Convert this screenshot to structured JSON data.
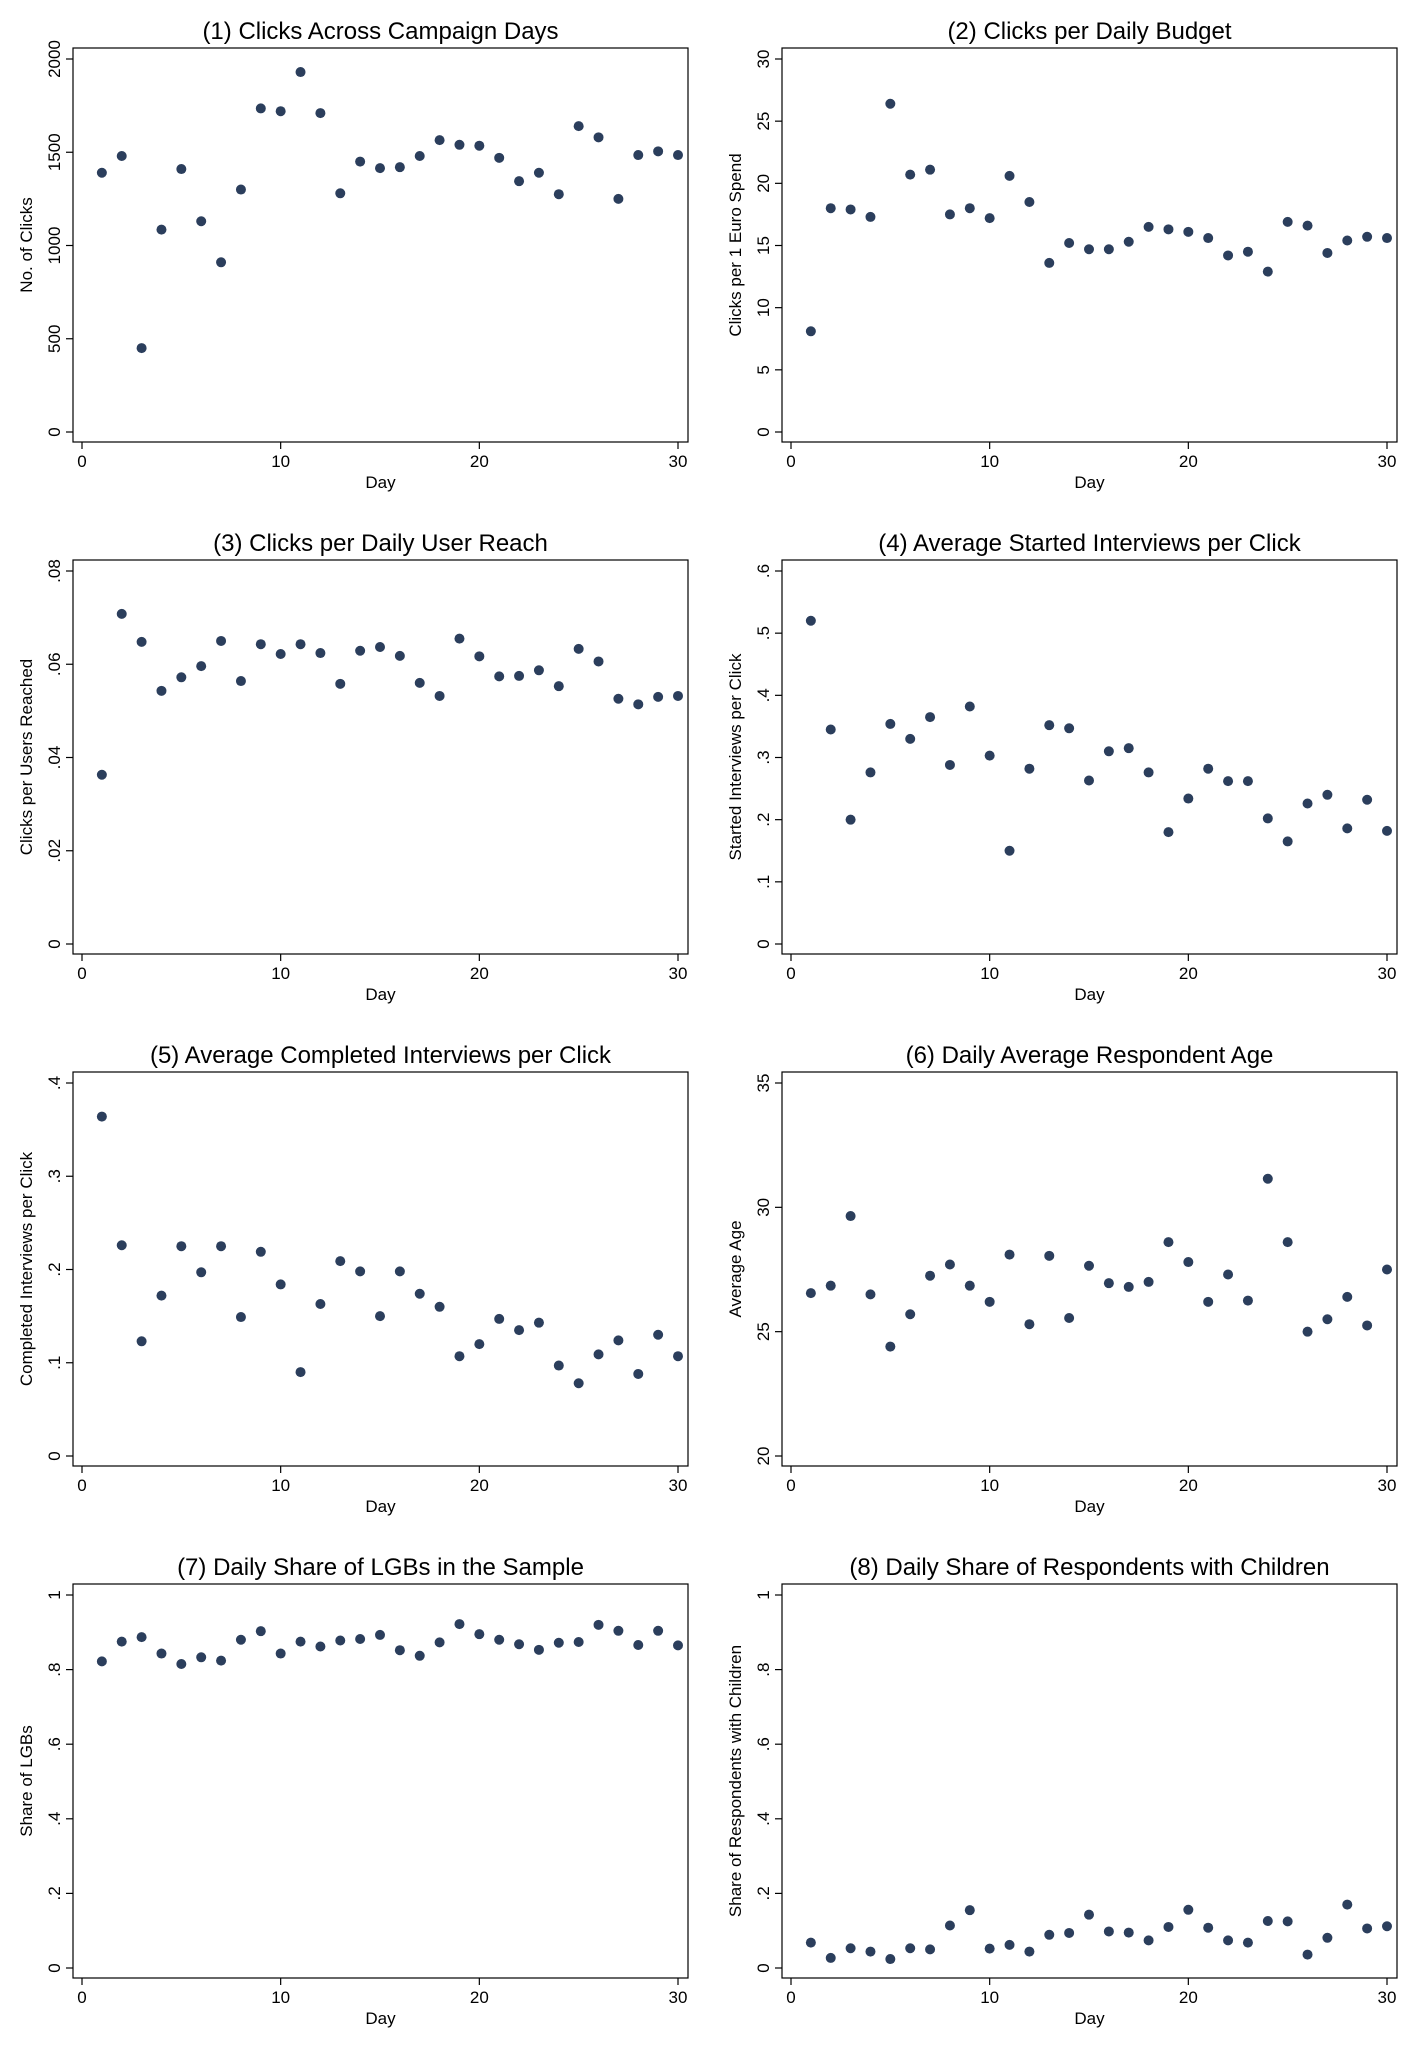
{
  "chart_data": [
    {
      "type": "scatter",
      "title": "(1) Clicks Across Campaign Days",
      "xlabel": "Day",
      "ylabel": "No. of Clicks",
      "xlim": [
        0,
        30
      ],
      "ylim": [
        0,
        2000
      ],
      "xticks": [
        0,
        10,
        20,
        30
      ],
      "xtick_labels": [
        "0",
        "10",
        "20",
        "30"
      ],
      "yticks": [
        0,
        500,
        1000,
        1500,
        2000
      ],
      "ytick_labels": [
        "0",
        "500",
        "1000",
        "1500",
        "2000"
      ],
      "grid": false,
      "x": [
        1,
        2,
        3,
        4,
        5,
        6,
        7,
        8,
        9,
        10,
        11,
        12,
        13,
        14,
        15,
        16,
        17,
        18,
        19,
        20,
        21,
        22,
        23,
        24,
        25,
        26,
        27,
        28,
        29,
        30
      ],
      "y": [
        1390,
        1480,
        450,
        1085,
        1410,
        1130,
        910,
        1300,
        1735,
        1720,
        1930,
        1710,
        1280,
        1450,
        1415,
        1420,
        1480,
        1565,
        1540,
        1535,
        1470,
        1345,
        1390,
        1275,
        1640,
        1580,
        1250,
        1485,
        1505,
        1485
      ]
    },
    {
      "type": "scatter",
      "title": "(2) Clicks per Daily Budget",
      "xlabel": "Day",
      "ylabel": "Clicks per 1 Euro Spend",
      "xlim": [
        0,
        30
      ],
      "ylim": [
        0,
        30
      ],
      "xticks": [
        0,
        10,
        20,
        30
      ],
      "xtick_labels": [
        "0",
        "10",
        "20",
        "30"
      ],
      "yticks": [
        0,
        5,
        10,
        15,
        20,
        25,
        30
      ],
      "ytick_labels": [
        "0",
        "5",
        "10",
        "15",
        "20",
        "25",
        "30"
      ],
      "grid": false,
      "x": [
        1,
        2,
        3,
        4,
        5,
        6,
        7,
        8,
        9,
        10,
        11,
        12,
        13,
        14,
        15,
        16,
        17,
        18,
        19,
        20,
        21,
        22,
        23,
        24,
        25,
        26,
        27,
        28,
        29,
        30
      ],
      "y": [
        8.1,
        18.0,
        17.9,
        17.3,
        26.4,
        20.7,
        21.1,
        17.5,
        18.0,
        17.2,
        20.6,
        18.5,
        13.6,
        15.2,
        14.7,
        14.7,
        15.3,
        16.5,
        16.3,
        16.1,
        15.6,
        14.2,
        14.5,
        12.9,
        16.9,
        16.6,
        14.4,
        15.4,
        15.7,
        15.6
      ]
    },
    {
      "type": "scatter",
      "title": "(3) Clicks per Daily User Reach",
      "xlabel": "Day",
      "ylabel": "Clicks per Users Reached",
      "xlim": [
        0,
        30
      ],
      "ylim": [
        0,
        0.08
      ],
      "xticks": [
        0,
        10,
        20,
        30
      ],
      "xtick_labels": [
        "0",
        "10",
        "20",
        "30"
      ],
      "yticks": [
        0,
        0.02,
        0.04,
        0.06,
        0.08
      ],
      "ytick_labels": [
        "0",
        ".02",
        ".04",
        ".06",
        ".08"
      ],
      "grid": false,
      "x": [
        1,
        2,
        3,
        4,
        5,
        6,
        7,
        8,
        9,
        10,
        11,
        12,
        13,
        14,
        15,
        16,
        17,
        18,
        19,
        20,
        21,
        22,
        23,
        24,
        25,
        26,
        27,
        28,
        29,
        30
      ],
      "y": [
        0.0363,
        0.0708,
        0.0648,
        0.0543,
        0.0572,
        0.0596,
        0.065,
        0.0564,
        0.0643,
        0.0622,
        0.0643,
        0.0624,
        0.0558,
        0.0629,
        0.0637,
        0.0618,
        0.056,
        0.0532,
        0.0655,
        0.0617,
        0.0574,
        0.0575,
        0.0587,
        0.0553,
        0.0633,
        0.0606,
        0.0526,
        0.0514,
        0.053,
        0.0532
      ]
    },
    {
      "type": "scatter",
      "title": "(4) Average Started Interviews per Click",
      "xlabel": "Day",
      "ylabel": "Started Interviews per Click",
      "xlim": [
        0,
        30
      ],
      "ylim": [
        0,
        0.6
      ],
      "xticks": [
        0,
        10,
        20,
        30
      ],
      "xtick_labels": [
        "0",
        "10",
        "20",
        "30"
      ],
      "yticks": [
        0,
        0.1,
        0.2,
        0.3,
        0.4,
        0.5,
        0.6
      ],
      "ytick_labels": [
        "0",
        ".1",
        ".2",
        ".3",
        ".4",
        ".5",
        ".6"
      ],
      "grid": false,
      "x": [
        1,
        2,
        3,
        4,
        5,
        6,
        7,
        8,
        9,
        10,
        11,
        12,
        13,
        14,
        15,
        16,
        17,
        18,
        19,
        20,
        21,
        22,
        23,
        24,
        25,
        26,
        27,
        28,
        29,
        30
      ],
      "y": [
        0.52,
        0.345,
        0.2,
        0.276,
        0.354,
        0.33,
        0.365,
        0.288,
        0.382,
        0.303,
        0.15,
        0.282,
        0.352,
        0.347,
        0.263,
        0.31,
        0.315,
        0.276,
        0.18,
        0.234,
        0.282,
        0.262,
        0.262,
        0.202,
        0.165,
        0.226,
        0.24,
        0.186,
        0.232,
        0.182
      ]
    },
    {
      "type": "scatter",
      "title": "(5) Average Completed Interviews per Click",
      "xlabel": "Day",
      "ylabel": "Completed Interviews per Click",
      "xlim": [
        0,
        30
      ],
      "ylim": [
        0,
        0.4
      ],
      "xticks": [
        0,
        10,
        20,
        30
      ],
      "xtick_labels": [
        "0",
        "10",
        "20",
        "30"
      ],
      "yticks": [
        0,
        0.1,
        0.2,
        0.3,
        0.4
      ],
      "ytick_labels": [
        "0",
        ".1",
        ".2",
        ".3",
        ".4"
      ],
      "grid": false,
      "x": [
        1,
        2,
        3,
        4,
        5,
        6,
        7,
        8,
        9,
        10,
        11,
        12,
        13,
        14,
        15,
        16,
        17,
        18,
        19,
        20,
        21,
        22,
        23,
        24,
        25,
        26,
        27,
        28,
        29,
        30
      ],
      "y": [
        0.364,
        0.226,
        0.123,
        0.172,
        0.225,
        0.197,
        0.225,
        0.149,
        0.219,
        0.184,
        0.09,
        0.163,
        0.209,
        0.198,
        0.15,
        0.198,
        0.174,
        0.16,
        0.107,
        0.12,
        0.147,
        0.135,
        0.143,
        0.097,
        0.078,
        0.109,
        0.124,
        0.088,
        0.13,
        0.107
      ]
    },
    {
      "type": "scatter",
      "title": "(6) Daily Average Respondent Age",
      "xlabel": "Day",
      "ylabel": "Average Age",
      "xlim": [
        0,
        30
      ],
      "ylim": [
        20,
        35
      ],
      "xticks": [
        0,
        10,
        20,
        30
      ],
      "xtick_labels": [
        "0",
        "10",
        "20",
        "30"
      ],
      "yticks": [
        20,
        25,
        30,
        35
      ],
      "ytick_labels": [
        "20",
        "25",
        "30",
        "35"
      ],
      "grid": false,
      "x": [
        1,
        2,
        3,
        4,
        5,
        6,
        7,
        8,
        9,
        10,
        11,
        12,
        13,
        14,
        15,
        16,
        17,
        18,
        19,
        20,
        21,
        22,
        23,
        24,
        25,
        26,
        27,
        28,
        29,
        30
      ],
      "y": [
        26.55,
        26.85,
        29.65,
        26.5,
        24.4,
        25.7,
        27.25,
        27.7,
        26.85,
        26.2,
        28.1,
        25.3,
        28.05,
        25.55,
        27.65,
        26.95,
        26.8,
        27.0,
        28.6,
        27.8,
        26.2,
        27.3,
        26.25,
        31.15,
        28.6,
        25.0,
        25.5,
        26.4,
        25.25,
        27.5
      ]
    },
    {
      "type": "scatter",
      "title": "(7) Daily Share of LGBs in the Sample",
      "xlabel": "Day",
      "ylabel": "Share of LGBs",
      "xlim": [
        0,
        30
      ],
      "ylim": [
        0,
        1
      ],
      "xticks": [
        0,
        10,
        20,
        30
      ],
      "xtick_labels": [
        "0",
        "10",
        "20",
        "30"
      ],
      "yticks": [
        0,
        0.2,
        0.4,
        0.6,
        0.8,
        1
      ],
      "ytick_labels": [
        "0",
        ".2",
        ".4",
        ".6",
        ".8",
        "1"
      ],
      "grid": false,
      "x": [
        1,
        2,
        3,
        4,
        5,
        6,
        7,
        8,
        9,
        10,
        11,
        12,
        13,
        14,
        15,
        16,
        17,
        18,
        19,
        20,
        21,
        22,
        23,
        24,
        25,
        26,
        27,
        28,
        29,
        30
      ],
      "y": [
        0.822,
        0.875,
        0.887,
        0.843,
        0.815,
        0.833,
        0.824,
        0.88,
        0.903,
        0.843,
        0.875,
        0.862,
        0.878,
        0.882,
        0.893,
        0.852,
        0.837,
        0.873,
        0.922,
        0.895,
        0.88,
        0.868,
        0.853,
        0.872,
        0.874,
        0.92,
        0.904,
        0.866,
        0.904,
        0.865
      ]
    },
    {
      "type": "scatter",
      "title": "(8) Daily Share of Respondents with Children",
      "xlabel": "Day",
      "ylabel": "Share of Respondents with Children",
      "xlim": [
        0,
        30
      ],
      "ylim": [
        0,
        1
      ],
      "xticks": [
        0,
        10,
        20,
        30
      ],
      "xtick_labels": [
        "0",
        "10",
        "20",
        "30"
      ],
      "yticks": [
        0,
        0.2,
        0.4,
        0.6,
        0.8,
        1
      ],
      "ytick_labels": [
        "0",
        ".2",
        ".4",
        ".6",
        ".8",
        "1"
      ],
      "grid": false,
      "x": [
        1,
        2,
        3,
        4,
        5,
        6,
        7,
        8,
        9,
        10,
        11,
        12,
        13,
        14,
        15,
        16,
        17,
        18,
        19,
        20,
        21,
        22,
        23,
        24,
        25,
        26,
        27,
        28,
        29,
        30
      ],
      "y": [
        0.068,
        0.027,
        0.053,
        0.044,
        0.024,
        0.053,
        0.05,
        0.114,
        0.155,
        0.052,
        0.062,
        0.044,
        0.089,
        0.094,
        0.143,
        0.098,
        0.095,
        0.074,
        0.11,
        0.156,
        0.108,
        0.074,
        0.068,
        0.126,
        0.125,
        0.036,
        0.081,
        0.17,
        0.106,
        0.112
      ]
    }
  ]
}
